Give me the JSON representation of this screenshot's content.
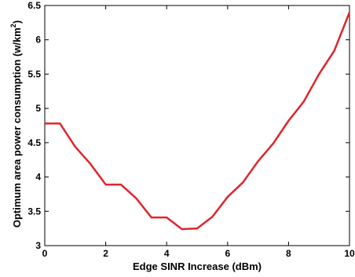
{
  "chart_data": {
    "type": "line",
    "title": "",
    "xlabel": "Edge SINR Increase (dBm)",
    "ylabel": {
      "prefix": "Optimum area power consumption (w/km",
      "superscript": "2",
      "suffix": ")"
    },
    "xlim": [
      0,
      10
    ],
    "ylim": [
      3,
      6.5
    ],
    "xticks": [
      0,
      2,
      4,
      6,
      8,
      10
    ],
    "yticks": [
      3,
      3.5,
      4,
      4.5,
      5,
      5.5,
      6,
      6.5
    ],
    "grid": false,
    "legend": "none",
    "series": [
      {
        "color": "#e0242c",
        "x": [
          0,
          0.5,
          1,
          1.5,
          2,
          2.5,
          3,
          3.5,
          4,
          4.5,
          5,
          5.5,
          6,
          6.5,
          7,
          7.5,
          8,
          8.5,
          9,
          9.5,
          10
        ],
        "y": [
          4.78,
          4.78,
          4.44,
          4.19,
          3.89,
          3.89,
          3.69,
          3.41,
          3.41,
          3.24,
          3.25,
          3.42,
          3.71,
          3.92,
          4.23,
          4.49,
          4.82,
          5.1,
          5.5,
          5.84,
          6.4
        ]
      }
    ]
  }
}
